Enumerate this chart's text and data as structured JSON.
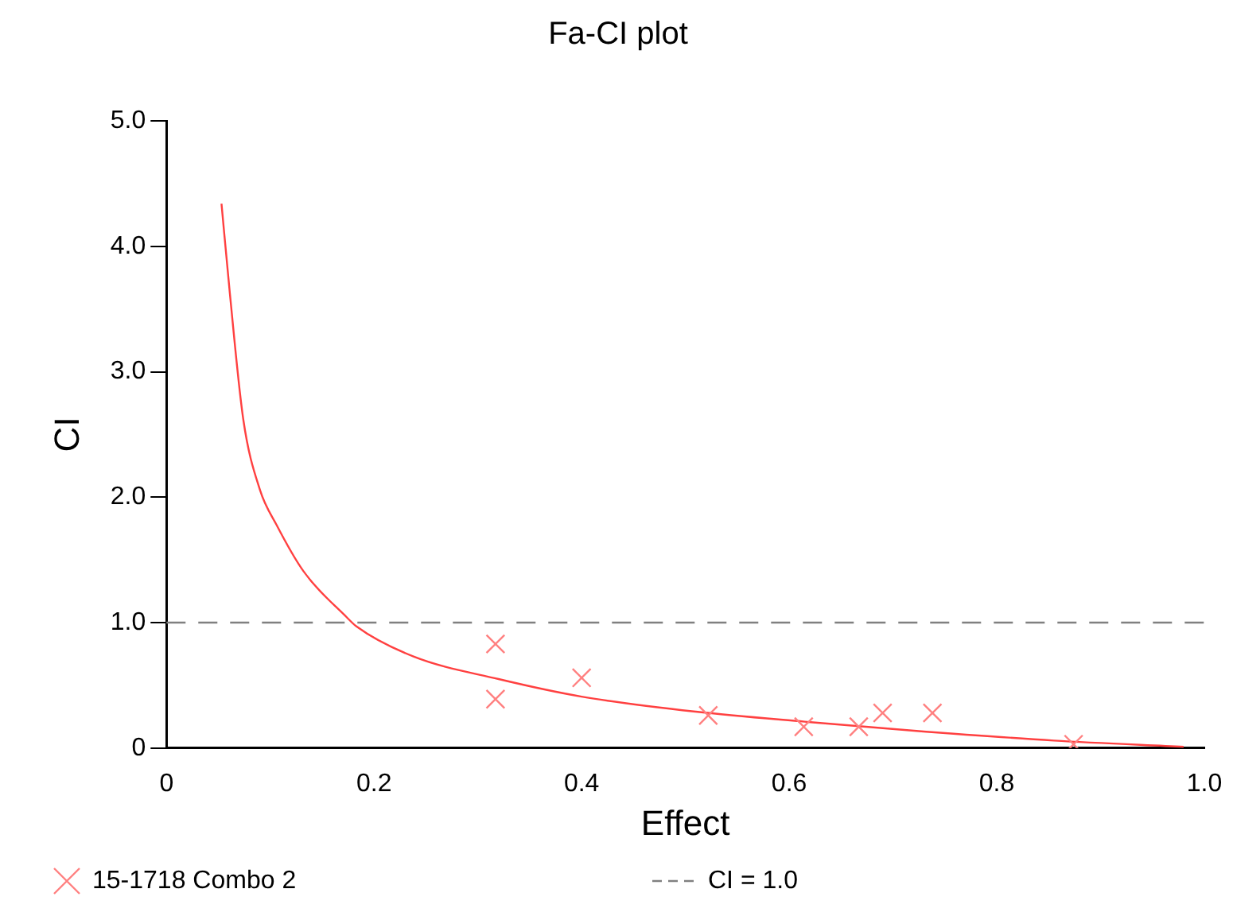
{
  "chart_data": {
    "type": "scatter",
    "title": "Fa-CI plot",
    "xlabel": "Effect",
    "ylabel": "CI",
    "xlim": [
      0,
      1.0
    ],
    "xticks": [
      0,
      {
        "value": 0.2,
        "label": "0.2"
      },
      {
        "value": 0.4,
        "label": "0.4"
      },
      {
        "value": 0.6,
        "label": "0.6"
      },
      {
        "value": 0.8,
        "label": "0.8"
      },
      {
        "value": 1.0,
        "label": "1.0"
      }
    ],
    "ylim": [
      0,
      5.0
    ],
    "yticks": [
      0,
      {
        "value": 1.0,
        "label": "1.0"
      },
      {
        "value": 2.0,
        "label": "2.0"
      },
      {
        "value": 3.0,
        "label": "3.0"
      },
      {
        "value": 4.0,
        "label": "4.0"
      },
      {
        "value": 5.0,
        "label": "5.0"
      }
    ],
    "grid": false,
    "legend": "bottom",
    "marker": "cross",
    "series": [
      {
        "name": "15-1718 Combo 2",
        "color": "#ff8080",
        "x": [
          0.317,
          0.317,
          0.4,
          0.522,
          0.614,
          0.667,
          0.69,
          0.738,
          0.874
        ],
        "values": [
          0.83,
          0.39,
          0.56,
          0.26,
          0.17,
          0.17,
          0.28,
          0.28,
          0.03
        ]
      },
      {
        "type": "line",
        "color": "#ff4040",
        "marker": "none",
        "line_style": "solid",
        "x": [
          0.053,
          0.061,
          0.074,
          0.09,
          0.106,
          0.132,
          0.174,
          0.183,
          0.238,
          0.32,
          0.4,
          0.51,
          0.615,
          0.718,
          0.855,
          0.98
        ],
        "values": [
          4.34,
          3.63,
          2.62,
          2.06,
          1.78,
          1.41,
          1.04,
          0.97,
          0.73,
          0.55,
          0.41,
          0.29,
          0.21,
          0.14,
          0.06,
          0.01
        ]
      }
    ],
    "ref_lines": [
      {
        "axis": "y",
        "value": 1.0,
        "label": "CI = 1.0",
        "color": "#808080",
        "line_style": "dashed"
      }
    ]
  }
}
